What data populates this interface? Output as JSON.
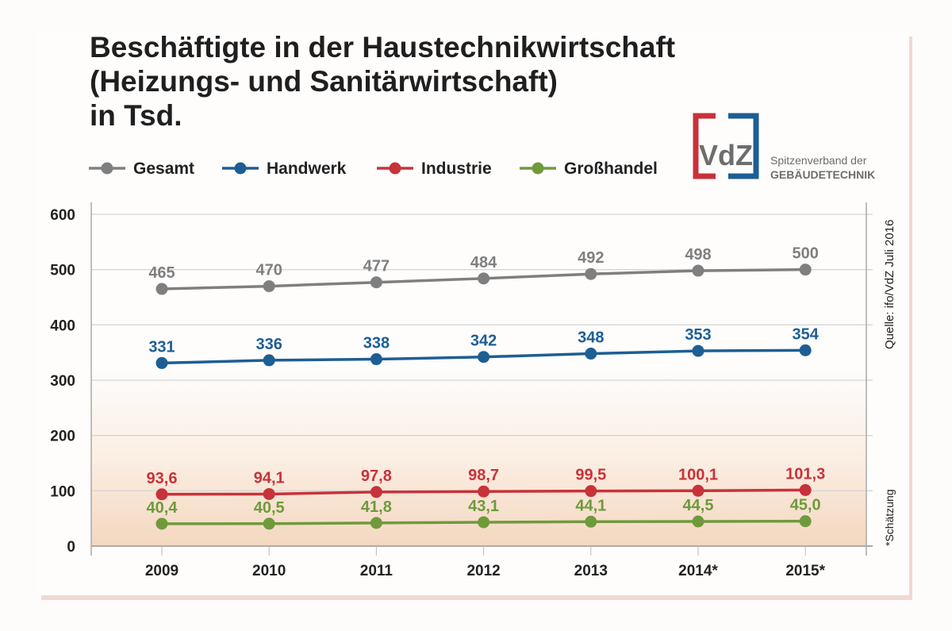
{
  "chart_data": {
    "type": "line",
    "title": [
      "Beschäftigte in der Haustechnikwirtschaft",
      "(Heizungs- und Sanitärwirtschaft)",
      "in Tsd."
    ],
    "categories": [
      "2009",
      "2010",
      "2011",
      "2012",
      "2013",
      "2014*",
      "2015*"
    ],
    "ylim": [
      0,
      600
    ],
    "yticks": [
      "0",
      "100",
      "200",
      "300",
      "400",
      "500",
      "600"
    ],
    "grid": true,
    "legend_position": "top-left",
    "series": [
      {
        "name": "Gesamt",
        "color": "#7f7f7f",
        "values": [
          465,
          470,
          477,
          484,
          492,
          498,
          500
        ],
        "labels": [
          "465",
          "470",
          "477",
          "484",
          "492",
          "498",
          "500"
        ]
      },
      {
        "name": "Handwerk",
        "color": "#1d5e94",
        "values": [
          331,
          336,
          338,
          342,
          348,
          353,
          354
        ],
        "labels": [
          "331",
          "336",
          "338",
          "342",
          "348",
          "353",
          "354"
        ]
      },
      {
        "name": "Industrie",
        "color": "#c8323a",
        "values": [
          93.6,
          94.1,
          97.8,
          98.7,
          99.5,
          100.1,
          101.3
        ],
        "labels": [
          "93,6",
          "94,1",
          "97,8",
          "98,7",
          "99,5",
          "100,1",
          "101,3"
        ]
      },
      {
        "name": "Großhandel",
        "color": "#6f9a3c",
        "values": [
          40.4,
          40.5,
          41.8,
          43.1,
          44.1,
          44.5,
          45.0
        ],
        "labels": [
          "40,4",
          "40,5",
          "41,8",
          "43,1",
          "44,1",
          "44,5",
          "45,0"
        ]
      }
    ],
    "source": "Quelle: ifo/VdZ Juli 2016",
    "footnote": "*Schätzung"
  },
  "logo": {
    "mark": "VdZ",
    "line1": "Spitzenverband der",
    "line2": "GEBÄUDETECHNIK"
  }
}
